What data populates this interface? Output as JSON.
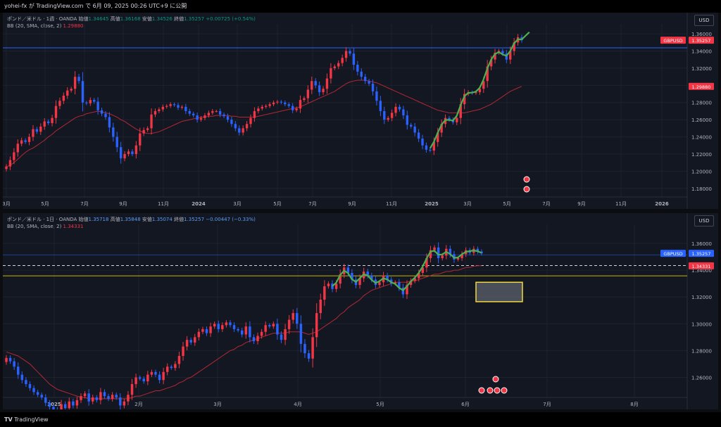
{
  "header": {
    "text": "yohei-fx が TradingView.com で 6月 09, 2025 00:26 UTC+9 に公開"
  },
  "footer": {
    "logo_text": "TV",
    "brand": "TradingView"
  },
  "colors": {
    "bg": "#131722",
    "grid": "#1e222d",
    "up": "#f23645",
    "down": "#2962ff",
    "bb": "#b22833",
    "wave": "#4caf50",
    "hline": "#2962ff",
    "zone": "#f0d840"
  },
  "chart_data": [
    {
      "type": "candlestick",
      "legend": {
        "symbol": "ポンド／米ドル · 1週 · OANDA",
        "o_label": "始値",
        "o": "1.34645",
        "h_label": "高値",
        "h": "1.36168",
        "l_label": "安値",
        "l": "1.34526",
        "c_label": "終値",
        "c": "1.35257",
        "chg": "+0.00725 (+0.54%)",
        "indicator": "BB (20, SMA, close, 2)",
        "indicator_value": "1.29880"
      },
      "currency_button": "USD",
      "ylim": [
        1.17,
        1.365
      ],
      "y_ticks": [
        "1.36000",
        "1.34000",
        "1.32000",
        "1.30000",
        "1.28000",
        "1.26000",
        "1.24000",
        "1.22000",
        "1.20000",
        "1.18000"
      ],
      "x_ticks": [
        "3月",
        "5月",
        "7月",
        "9月",
        "11月",
        "2024",
        "3月",
        "5月",
        "7月",
        "9月",
        "11月",
        "2025",
        "3月",
        "5月",
        "7月",
        "9月",
        "11月",
        "2026"
      ],
      "price_label": {
        "text": "GBPUSD",
        "value": "1.35257"
      },
      "bb_label": "1.29880",
      "horizontal_line": 1.3437,
      "series": {
        "close": [
          1.2055,
          1.213,
          1.222,
          1.232,
          1.236,
          1.234,
          1.24,
          1.249,
          1.246,
          1.252,
          1.258,
          1.256,
          1.262,
          1.276,
          1.282,
          1.288,
          1.294,
          1.296,
          1.31,
          1.305,
          1.28,
          1.279,
          1.283,
          1.281,
          1.271,
          1.267,
          1.263,
          1.251,
          1.24,
          1.228,
          1.215,
          1.22,
          1.223,
          1.22,
          1.23,
          1.244,
          1.248,
          1.25,
          1.266,
          1.27,
          1.272,
          1.275,
          1.276,
          1.278,
          1.277,
          1.274,
          1.275,
          1.27,
          1.267,
          1.265,
          1.26,
          1.262,
          1.265,
          1.268,
          1.27,
          1.27,
          1.266,
          1.264,
          1.26,
          1.255,
          1.25,
          1.245,
          1.25,
          1.255,
          1.262,
          1.27,
          1.273,
          1.275,
          1.276,
          1.278,
          1.28,
          1.281,
          1.28,
          1.278,
          1.276,
          1.271,
          1.273,
          1.283,
          1.285,
          1.295,
          1.305,
          1.3,
          1.292,
          1.296,
          1.308,
          1.32,
          1.322,
          1.326,
          1.332,
          1.34,
          1.337,
          1.324,
          1.316,
          1.31,
          1.305,
          1.302,
          1.293,
          1.282,
          1.27,
          1.26,
          1.262,
          1.268,
          1.275,
          1.272,
          1.265,
          1.254,
          1.252,
          1.245,
          1.238,
          1.23,
          1.225,
          1.224,
          1.234,
          1.245,
          1.255,
          1.262,
          1.26,
          1.257,
          1.262,
          1.278,
          1.29,
          1.292,
          1.291,
          1.292,
          1.296,
          1.305,
          1.322,
          1.33,
          1.338,
          1.34,
          1.337,
          1.33,
          1.34,
          1.35,
          1.356,
          1.3526
        ],
        "bb_mid": [
          1.205,
          1.207,
          1.21,
          1.214,
          1.218,
          1.222,
          1.225,
          1.227,
          1.23,
          1.233,
          1.236,
          1.24,
          1.243,
          1.247,
          1.25,
          1.253,
          1.256,
          1.259,
          1.262,
          1.264,
          1.265,
          1.267,
          1.268,
          1.269,
          1.27,
          1.269,
          1.268,
          1.267,
          1.265,
          1.263,
          1.26,
          1.258,
          1.255,
          1.252,
          1.249,
          1.247,
          1.245,
          1.244,
          1.244,
          1.245,
          1.246,
          1.248,
          1.25,
          1.252,
          1.254,
          1.256,
          1.258,
          1.259,
          1.26,
          1.261,
          1.262,
          1.263,
          1.263,
          1.264,
          1.264,
          1.265,
          1.265,
          1.265,
          1.265,
          1.264,
          1.264,
          1.263,
          1.263,
          1.263,
          1.263,
          1.263,
          1.264,
          1.265,
          1.266,
          1.267,
          1.268,
          1.269,
          1.27,
          1.271,
          1.272,
          1.273,
          1.274,
          1.275,
          1.277,
          1.279,
          1.281,
          1.283,
          1.285,
          1.287,
          1.289,
          1.291,
          1.293,
          1.296,
          1.299,
          1.302,
          1.304,
          1.305,
          1.306,
          1.306,
          1.306,
          1.305,
          1.304,
          1.303,
          1.301,
          1.299,
          1.297,
          1.295,
          1.293,
          1.291,
          1.289,
          1.287,
          1.285,
          1.283,
          1.281,
          1.279,
          1.277,
          1.275,
          1.273,
          1.271,
          1.27,
          1.269,
          1.268,
          1.268,
          1.268,
          1.268,
          1.268,
          1.269,
          1.27,
          1.271,
          1.272,
          1.274,
          1.276,
          1.278,
          1.281,
          1.284,
          1.287,
          1.29,
          1.293,
          1.295,
          1.297,
          1.2988
        ]
      }
    },
    {
      "type": "candlestick",
      "legend": {
        "symbol": "ポンド／米ドル · 1日 · OANDA",
        "o_label": "始値",
        "o": "1.35718",
        "h_label": "高値",
        "h": "1.35848",
        "l_label": "安値",
        "l": "1.35074",
        "c_label": "終値",
        "c": "1.35257",
        "chg": "−0.00447 (−0.33%)",
        "indicator": "BB (20, SMA, close, 2)",
        "indicator_value": "1.34331"
      },
      "currency_button": "USD",
      "ylim": [
        1.245,
        1.37
      ],
      "y_ticks": [
        "1.36000",
        "1.34000",
        "1.32000",
        "1.30000",
        "1.28000",
        "1.26000"
      ],
      "x_ticks": [
        "2025",
        "2月",
        "3月",
        "4月",
        "5月",
        "6月",
        "7月",
        "8月"
      ],
      "price_label": {
        "text": "GBPUSD",
        "value": "1.35257"
      },
      "bb_label": "1.34331",
      "horizontal_lines": {
        "blue": 1.3515,
        "dashed": 1.3435,
        "yellow": 1.3358
      },
      "zone": {
        "from": 1.3165,
        "to": 1.331
      },
      "series": {
        "close": [
          1.2745,
          1.272,
          1.268,
          1.262,
          1.258,
          1.255,
          1.252,
          1.249,
          1.247,
          1.245,
          1.241,
          1.238,
          1.236,
          1.234,
          1.24,
          1.237,
          1.242,
          1.239,
          1.243,
          1.246,
          1.248,
          1.242,
          1.245,
          1.243,
          1.249,
          1.246,
          1.244,
          1.247,
          1.245,
          1.239,
          1.242,
          1.247,
          1.255,
          1.26,
          1.259,
          1.257,
          1.262,
          1.264,
          1.262,
          1.258,
          1.264,
          1.268,
          1.267,
          1.27,
          1.276,
          1.283,
          1.288,
          1.286,
          1.29,
          1.294,
          1.296,
          1.293,
          1.298,
          1.3,
          1.296,
          1.299,
          1.301,
          1.299,
          1.296,
          1.295,
          1.292,
          1.298,
          1.29,
          1.287,
          1.291,
          1.294,
          1.299,
          1.298,
          1.3,
          1.292,
          1.288,
          1.296,
          1.303,
          1.308,
          1.3,
          1.285,
          1.278,
          1.274,
          1.29,
          1.308,
          1.318,
          1.328,
          1.33,
          1.326,
          1.33,
          1.337,
          1.342,
          1.338,
          1.333,
          1.329,
          1.334,
          1.339,
          1.336,
          1.333,
          1.329,
          1.331,
          1.336,
          1.333,
          1.33,
          1.331,
          1.327,
          1.322,
          1.329,
          1.332,
          1.334,
          1.338,
          1.342,
          1.349,
          1.355,
          1.357,
          1.349,
          1.351,
          1.356,
          1.352,
          1.348,
          1.349,
          1.352,
          1.355,
          1.353,
          1.356,
          1.354,
          1.3526
        ],
        "bb_mid": [
          1.279,
          1.278,
          1.277,
          1.276,
          1.274,
          1.272,
          1.27,
          1.267,
          1.264,
          1.261,
          1.258,
          1.255,
          1.253,
          1.251,
          1.25,
          1.249,
          1.248,
          1.247,
          1.246,
          1.245,
          1.245,
          1.244,
          1.244,
          1.244,
          1.244,
          1.244,
          1.244,
          1.244,
          1.244,
          1.244,
          1.244,
          1.244,
          1.245,
          1.246,
          1.246,
          1.247,
          1.248,
          1.249,
          1.25,
          1.25,
          1.251,
          1.252,
          1.253,
          1.254,
          1.256,
          1.257,
          1.259,
          1.26,
          1.262,
          1.264,
          1.266,
          1.268,
          1.27,
          1.272,
          1.274,
          1.276,
          1.278,
          1.28,
          1.281,
          1.283,
          1.284,
          1.286,
          1.287,
          1.288,
          1.289,
          1.29,
          1.291,
          1.292,
          1.293,
          1.293,
          1.293,
          1.293,
          1.294,
          1.294,
          1.294,
          1.294,
          1.293,
          1.292,
          1.293,
          1.294,
          1.296,
          1.298,
          1.3,
          1.302,
          1.304,
          1.307,
          1.309,
          1.312,
          1.314,
          1.316,
          1.318,
          1.321,
          1.323,
          1.325,
          1.326,
          1.327,
          1.328,
          1.329,
          1.33,
          1.331,
          1.331,
          1.331,
          1.331,
          1.332,
          1.332,
          1.333,
          1.334,
          1.335,
          1.336,
          1.337,
          1.337,
          1.338,
          1.339,
          1.339,
          1.34,
          1.34,
          1.341,
          1.342,
          1.342,
          1.343,
          1.3433,
          1.34331
        ]
      }
    }
  ]
}
